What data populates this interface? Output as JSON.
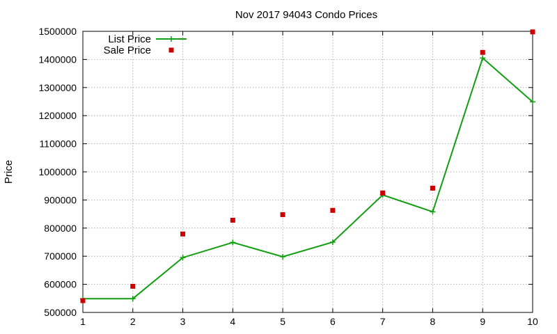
{
  "chart_data": {
    "type": "line",
    "title": "Nov 2017 94043 Condo Prices",
    "xlabel": "",
    "ylabel": "Price",
    "x": [
      1,
      2,
      3,
      4,
      5,
      6,
      7,
      8,
      9,
      10
    ],
    "xlim": [
      1,
      10
    ],
    "ylim": [
      500000,
      1500000
    ],
    "xticks": [
      "1",
      "2",
      "3",
      "4",
      "5",
      "6",
      "7",
      "8",
      "9",
      "10"
    ],
    "yticks": [
      "500000",
      "600000",
      "700000",
      "800000",
      "900000",
      "1000000",
      "1100000",
      "1200000",
      "1300000",
      "1400000",
      "1500000"
    ],
    "grid": true,
    "legend_position": "top-left",
    "series": [
      {
        "name": "List Price",
        "style": "line with plus markers",
        "color": "#109e10",
        "values": [
          549000,
          549000,
          695000,
          749000,
          698000,
          750000,
          918000,
          858000,
          1405000,
          1249000
        ]
      },
      {
        "name": "Sale Price",
        "style": "square markers",
        "color": "#cc0000",
        "values": [
          542000,
          593000,
          779000,
          828000,
          848000,
          863000,
          925000,
          942000,
          1425000,
          1498000
        ]
      }
    ]
  }
}
